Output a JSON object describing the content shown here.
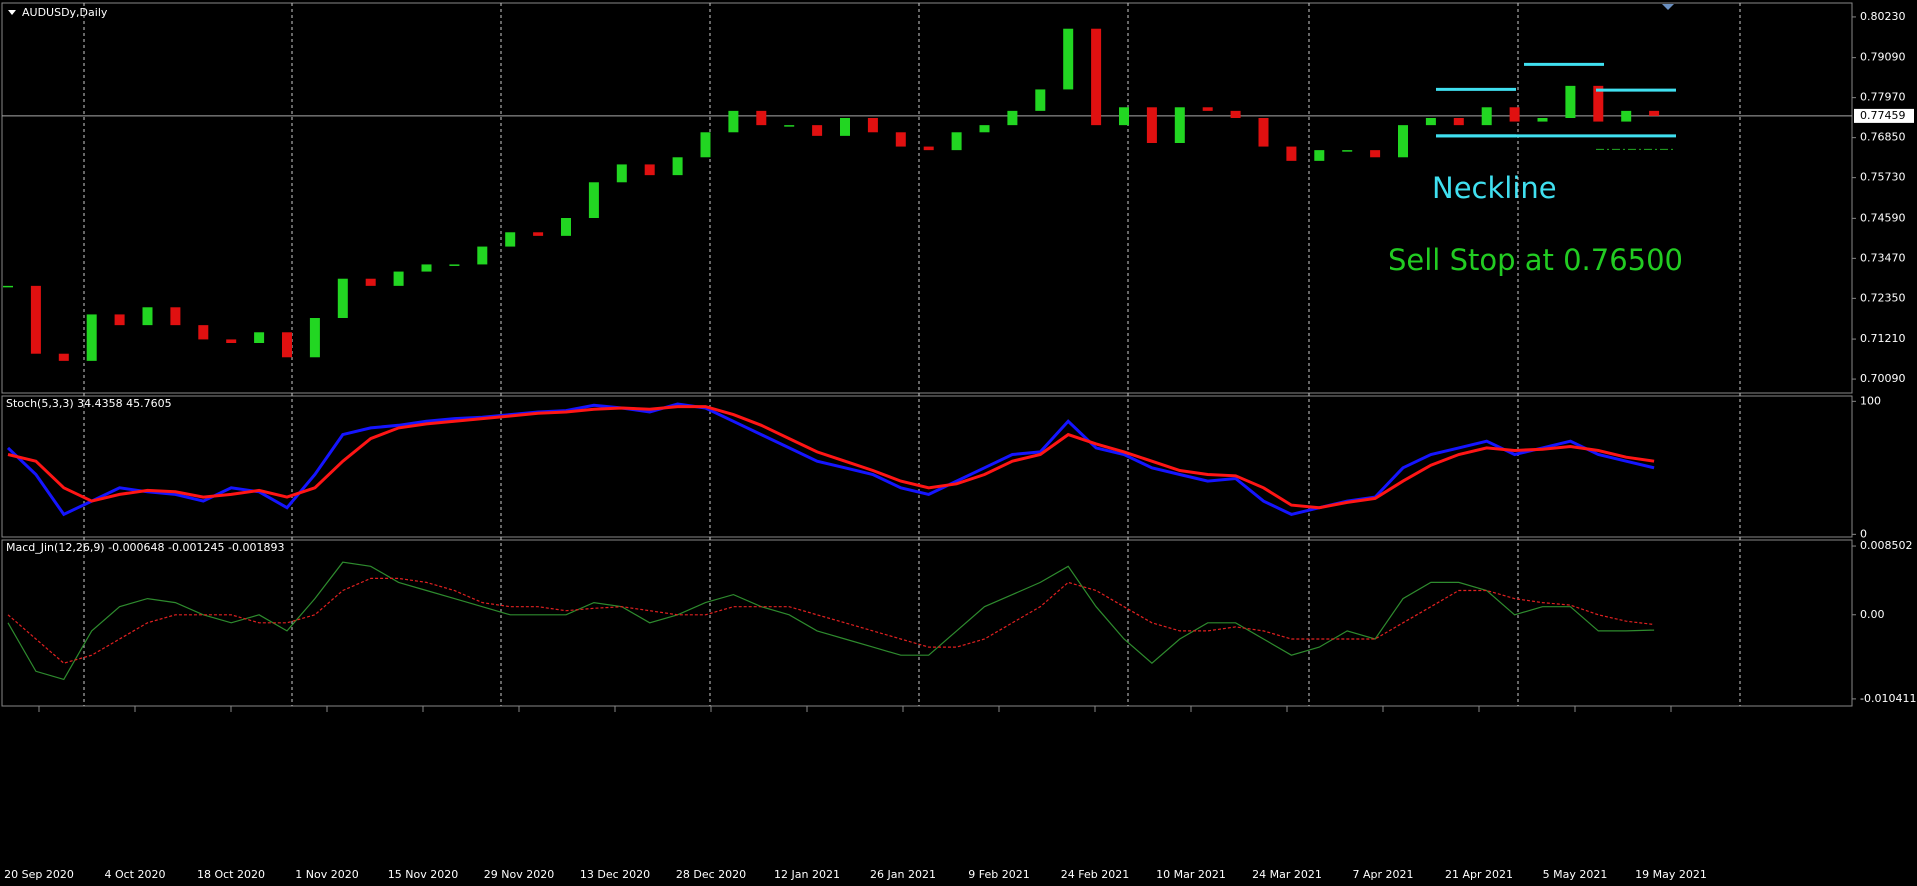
{
  "chart_data": [
    {
      "type": "candlestick",
      "title": "AUDUSDy,Daily",
      "close": [
        0.727,
        0.708,
        0.706,
        0.719,
        0.716,
        0.721,
        0.716,
        0.712,
        0.711,
        0.714,
        0.707,
        0.718,
        0.729,
        0.727,
        0.731,
        0.733,
        0.733,
        0.738,
        0.742,
        0.741,
        0.746,
        0.756,
        0.761,
        0.758,
        0.763,
        0.77,
        0.776,
        0.772,
        0.772,
        0.769,
        0.774,
        0.77,
        0.766,
        0.765,
        0.77,
        0.772,
        0.776,
        0.782,
        0.799,
        0.772,
        0.777,
        0.767,
        0.777,
        0.776,
        0.774,
        0.766,
        0.762,
        0.765,
        0.765,
        0.763,
        0.772,
        0.774,
        0.772,
        0.777,
        0.773,
        0.774,
        0.783,
        0.773,
        0.776,
        0.7746
      ],
      "up_color": "#22d622",
      "down_color": "#e01010",
      "ylim": [
        0.697,
        0.8062
      ],
      "yticks": [
        {
          "value": 0.8023,
          "label": "0.80230"
        },
        {
          "value": 0.7909,
          "label": "0.79090"
        },
        {
          "value": 0.7797,
          "label": "0.77970"
        },
        {
          "value": 0.7685,
          "label": "0.76850"
        },
        {
          "value": 0.7573,
          "label": "0.75730"
        },
        {
          "value": 0.7459,
          "label": "0.74590"
        },
        {
          "value": 0.7347,
          "label": "0.73470"
        },
        {
          "value": 0.7235,
          "label": "0.72350"
        },
        {
          "value": 0.7121,
          "label": "0.71210"
        },
        {
          "value": 0.7009,
          "label": "0.70090"
        }
      ],
      "current_price": {
        "value": 0.77459,
        "label": "0.77459"
      },
      "levels": [
        {
          "value": 0.769,
          "color": "#40e0f0"
        },
        {
          "value": 0.782,
          "color": "#40e0f0"
        },
        {
          "value": 0.789,
          "color": "#40e0f0"
        },
        {
          "value": 0.7818,
          "color": "#40e0f0"
        },
        {
          "value": 0.7652,
          "color": "#22aa22"
        }
      ],
      "annotations": [
        "Neckline",
        "Sell Stop at 0.76500"
      ]
    },
    {
      "type": "line",
      "title": "Stoch(5,3,3) 34.4358 45.7605",
      "series": [
        {
          "color": "#1515ff",
          "values": [
            65,
            45,
            15,
            25,
            35,
            32,
            30,
            25,
            35,
            32,
            20,
            45,
            75,
            80,
            82,
            85,
            87,
            88,
            90,
            92,
            93,
            97,
            95,
            92,
            98,
            95,
            85,
            75,
            65,
            55,
            50,
            45,
            35,
            30,
            40,
            50,
            60,
            62,
            85,
            65,
            60,
            50,
            45,
            40,
            42,
            25,
            15,
            20,
            25,
            28,
            50,
            60,
            65,
            70,
            60,
            65,
            70,
            60,
            55,
            50
          ]
        },
        {
          "color": "#ff1515",
          "values": [
            60,
            55,
            35,
            25,
            30,
            33,
            32,
            28,
            30,
            33,
            28,
            35,
            55,
            72,
            80,
            83,
            85,
            87,
            89,
            91,
            92,
            94,
            95,
            94,
            96,
            96,
            90,
            82,
            72,
            62,
            55,
            48,
            40,
            35,
            38,
            45,
            55,
            60,
            75,
            68,
            62,
            55,
            48,
            45,
            44,
            35,
            22,
            20,
            24,
            27,
            40,
            52,
            60,
            65,
            63,
            64,
            66,
            63,
            58,
            55
          ]
        }
      ],
      "ylim": [
        -2,
        104
      ],
      "yticks": [
        100,
        0
      ]
    },
    {
      "type": "line",
      "title": "Macd_Jin(12,26,9) -0.000648 -0.001245 -0.001893",
      "series": [
        {
          "color": "#2e8b2e",
          "values": [
            -0.001,
            -0.007,
            -0.008,
            -0.002,
            0.001,
            0.002,
            0.0015,
            0.0,
            -0.001,
            0.0,
            -0.002,
            0.002,
            0.0065,
            0.006,
            0.004,
            0.003,
            0.002,
            0.001,
            0.0,
            0.0,
            0.0,
            0.0015,
            0.001,
            -0.001,
            0.0,
            0.0015,
            0.0025,
            0.001,
            0.0,
            -0.002,
            -0.003,
            -0.004,
            -0.005,
            -0.005,
            -0.002,
            0.001,
            0.0025,
            0.004,
            0.006,
            0.001,
            -0.003,
            -0.006,
            -0.003,
            -0.001,
            -0.001,
            -0.003,
            -0.005,
            -0.004,
            -0.002,
            -0.003,
            0.002,
            0.004,
            0.004,
            0.003,
            0.0,
            0.001,
            0.001,
            -0.002,
            -0.002,
            -0.0019
          ]
        },
        {
          "color": "#e02020",
          "dashed": true,
          "values": [
            0.0,
            -0.003,
            -0.006,
            -0.005,
            -0.003,
            -0.001,
            0.0,
            0.0,
            0.0,
            -0.001,
            -0.001,
            0.0,
            0.003,
            0.0045,
            0.0045,
            0.004,
            0.003,
            0.0015,
            0.001,
            0.001,
            0.0005,
            0.0008,
            0.001,
            0.0005,
            0.0,
            0.0,
            0.001,
            0.001,
            0.001,
            0.0,
            -0.001,
            -0.002,
            -0.003,
            -0.004,
            -0.004,
            -0.003,
            -0.001,
            0.001,
            0.004,
            0.003,
            0.001,
            -0.001,
            -0.002,
            -0.002,
            -0.0015,
            -0.002,
            -0.003,
            -0.003,
            -0.003,
            -0.003,
            -0.001,
            0.001,
            0.003,
            0.003,
            0.002,
            0.0015,
            0.0012,
            0.0,
            -0.0008,
            -0.0012
          ]
        }
      ],
      "ylim": [
        -0.01129,
        0.00925
      ],
      "yticks": [
        0.008502,
        {
          "value": 0,
          "label": "0.00"
        },
        -0.010411
      ]
    }
  ],
  "date_axis": [
    "20 Sep 2020",
    "4 Oct 2020",
    "18 Oct 2020",
    "1 Nov 2020",
    "15 Nov 2020",
    "29 Nov 2020",
    "13 Dec 2020",
    "28 Dec 2020",
    "12 Jan 2021",
    "26 Jan 2021",
    "9 Feb 2021",
    "24 Feb 2021",
    "10 Mar 2021",
    "24 Mar 2021",
    "7 Apr 2021",
    "21 Apr 2021",
    "5 May 2021",
    "19 May 2021"
  ]
}
